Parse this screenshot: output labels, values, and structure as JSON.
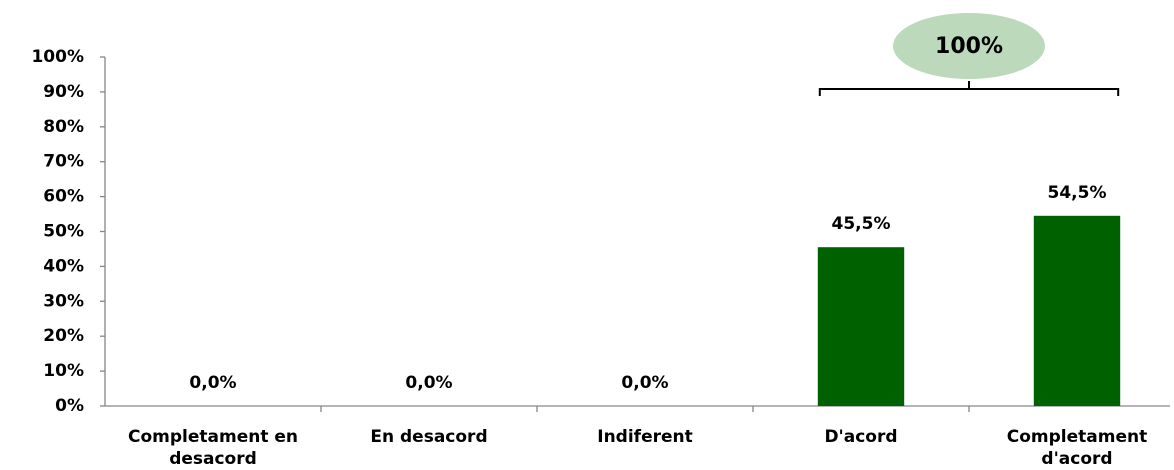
{
  "chart_data": {
    "type": "bar",
    "categories": [
      "Completament en desacord",
      "En desacord",
      "Indiferent",
      "D'acord",
      "Completament d'acord"
    ],
    "values": [
      0,
      0,
      0,
      45.5,
      54.5
    ],
    "value_labels": [
      "0,0%",
      "0,0%",
      "0,0%",
      "45,5%",
      "54,5%"
    ],
    "color": "#006100",
    "ylim": [
      0,
      100
    ],
    "yticks": [
      {
        "value": 0,
        "label": "0%"
      },
      {
        "value": 10,
        "label": "10%"
      },
      {
        "value": 20,
        "label": "20%"
      },
      {
        "value": 30,
        "label": "30%"
      },
      {
        "value": 40,
        "label": "40%"
      },
      {
        "value": 50,
        "label": "50%"
      },
      {
        "value": 60,
        "label": "60%"
      },
      {
        "value": 70,
        "label": "70%"
      },
      {
        "value": 80,
        "label": "80%"
      },
      {
        "value": 90,
        "label": "90%"
      },
      {
        "value": 100,
        "label": "100%"
      }
    ],
    "grid": false,
    "annotations": [
      {
        "text": "100%",
        "color": "#bcd9bc"
      }
    ]
  }
}
